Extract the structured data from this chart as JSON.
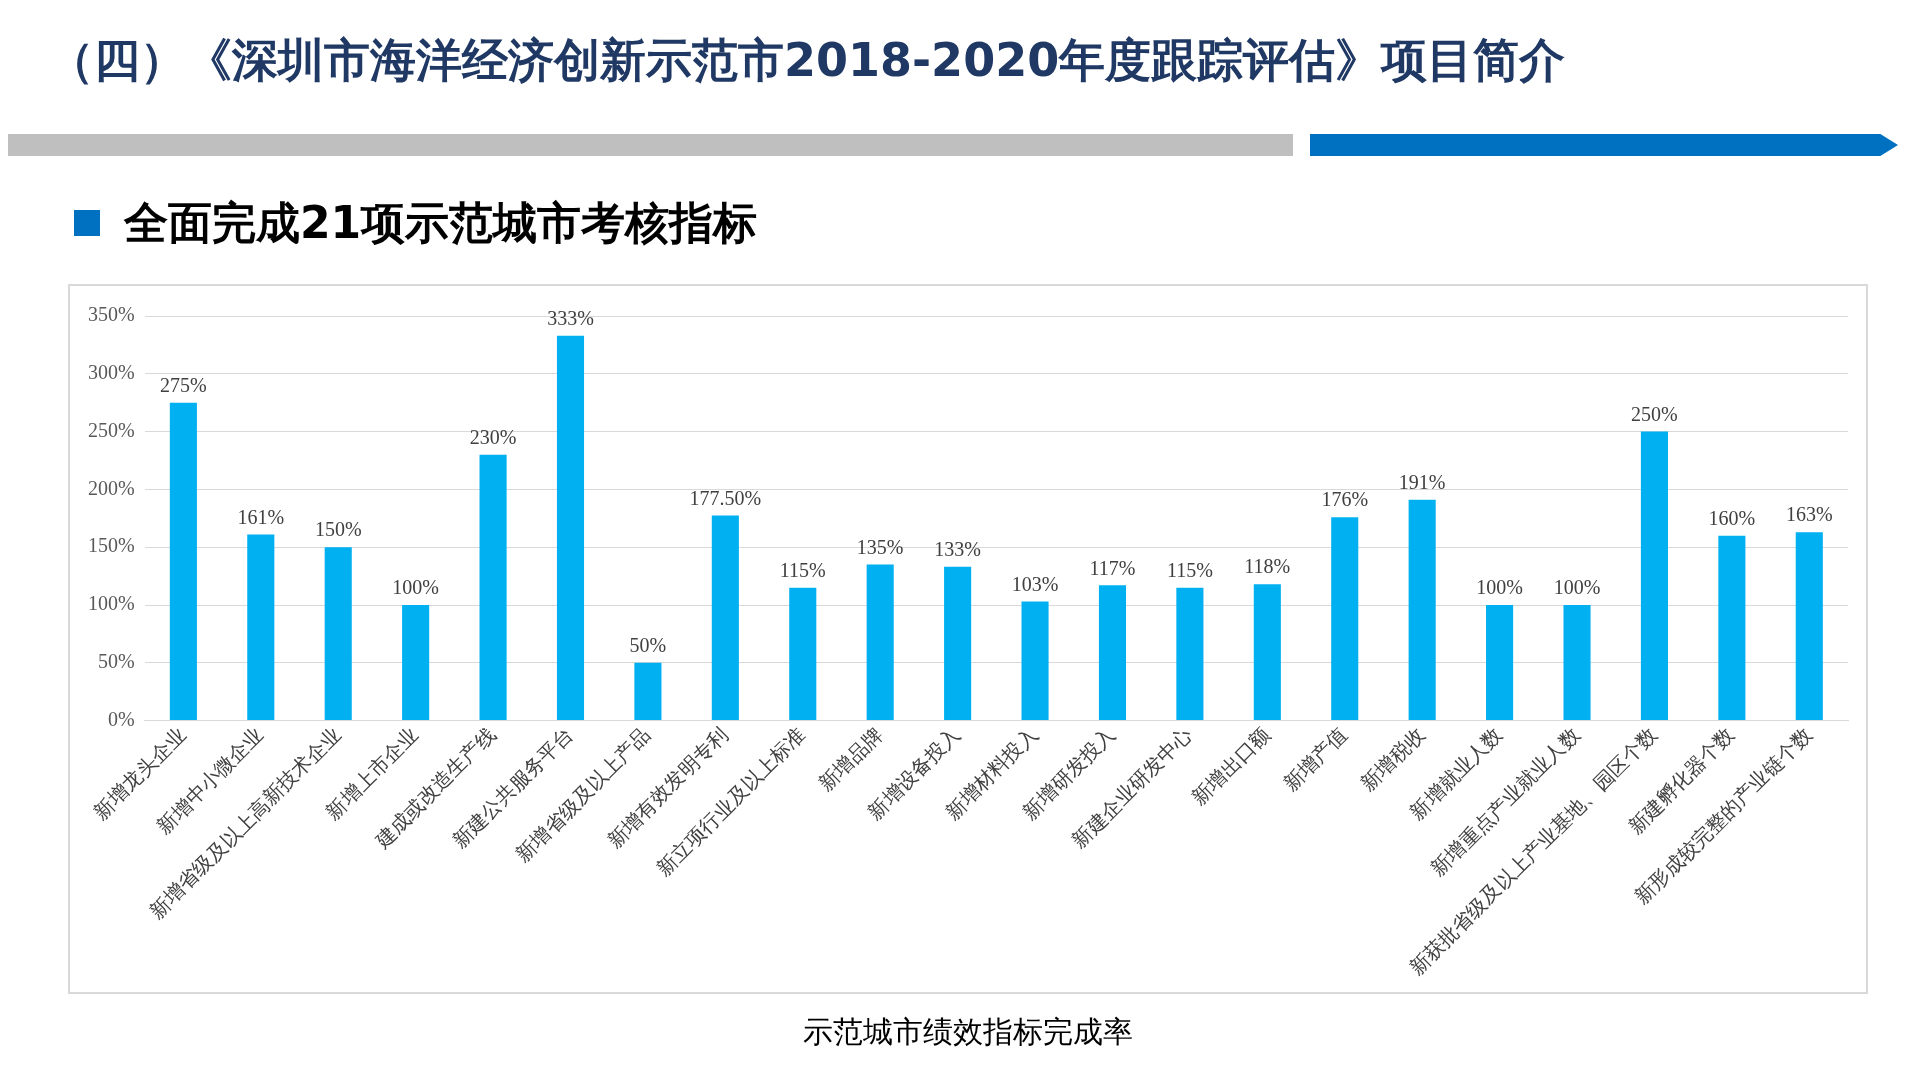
{
  "chart_data": {
    "type": "bar",
    "title": "（四）《深圳市海洋经济创新示范市2018-2020年度跟踪评估》项目简介",
    "subtitle": "全面完成21项示范城市考核指标",
    "categories": [
      "新增龙头企业",
      "新增中小微企业",
      "新增省级及以上高新技术企业",
      "新增上市企业",
      "建成或改造生产线",
      "新建公共服务平台",
      "新增省级及以上产品",
      "新增有效发明专利",
      "新立项行业及以上标准",
      "新增品牌",
      "新增设备投入",
      "新增材料投入",
      "新增研发投入",
      "新建企业研发中心",
      "新增出口额",
      "新增产值",
      "新增税收",
      "新增就业人数",
      "新增重点产业就业人数",
      "新获批省级及以上产业基地、园区个数",
      "新建孵化器个数",
      "新形成较完整的产业链个数"
    ],
    "values": [
      275,
      161,
      150,
      100,
      230,
      333,
      50,
      177.5,
      115,
      135,
      133,
      103,
      117,
      115,
      118,
      176,
      191,
      100,
      100,
      250,
      160,
      163
    ],
    "value_labels": [
      "275%",
      "161%",
      "150%",
      "100%",
      "230%",
      "333%",
      "50%",
      "177.50%",
      "115%",
      "135%",
      "133%",
      "103%",
      "117%",
      "115%",
      "118%",
      "176%",
      "191%",
      "100%",
      "100%",
      "250%",
      "160%",
      "163%"
    ],
    "color": "#00b0f0",
    "ylim": [
      0,
      350
    ],
    "yticks": [
      {
        "value": 0,
        "label": "0%"
      },
      {
        "value": 50,
        "label": "50%"
      },
      {
        "value": 100,
        "label": "100%"
      },
      {
        "value": 150,
        "label": "150%"
      },
      {
        "value": 200,
        "label": "200%"
      },
      {
        "value": 250,
        "label": "250%"
      },
      {
        "value": 300,
        "label": "300%"
      },
      {
        "value": 350,
        "label": "350%"
      }
    ],
    "grid": "y",
    "legend": false,
    "annotations": [
      "示范城市绩效指标完成率"
    ]
  }
}
